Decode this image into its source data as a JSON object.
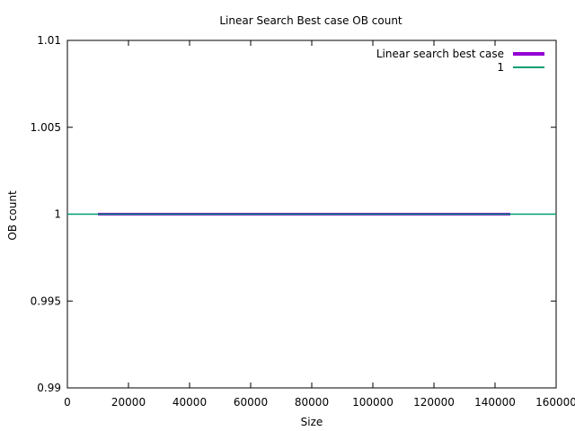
{
  "chart_data": {
    "type": "line",
    "title": "Linear Search Best case OB count",
    "xlabel": "Size",
    "ylabel": "OB count",
    "xlim": [
      0,
      160000
    ],
    "ylim": [
      0.99,
      1.01
    ],
    "xticks": [
      0,
      20000,
      40000,
      60000,
      80000,
      100000,
      120000,
      140000,
      160000
    ],
    "xtick_labels": [
      "0",
      "20000",
      "40000",
      "60000",
      "80000",
      "100000",
      "120000",
      "140000",
      "160000"
    ],
    "yticks": [
      0.99,
      0.995,
      1,
      1.005,
      1.01
    ],
    "ytick_labels": [
      "0.99",
      "0.995",
      "1",
      "1.005",
      "1.01"
    ],
    "grid": false,
    "legend_position": "top-right",
    "series": [
      {
        "name": "Linear search best case",
        "color": "#9400d3",
        "x": [
          10000,
          145000
        ],
        "y": [
          1,
          1
        ]
      },
      {
        "name": "1",
        "color": "#009e73",
        "x": [
          0,
          160000
        ],
        "y": [
          1,
          1
        ]
      }
    ]
  }
}
